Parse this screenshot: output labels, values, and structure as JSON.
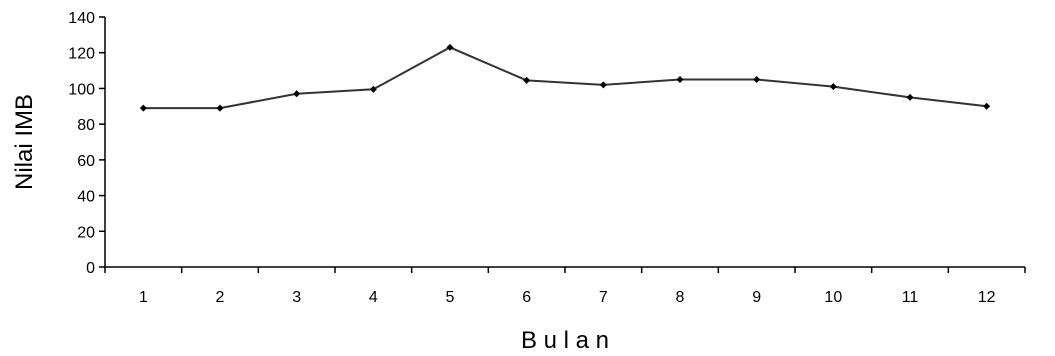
{
  "chart_data": {
    "type": "line",
    "categories": [
      "1",
      "2",
      "3",
      "4",
      "5",
      "6",
      "7",
      "8",
      "9",
      "10",
      "11",
      "12"
    ],
    "series": [
      {
        "values": [
          89,
          89,
          97,
          99.5,
          123,
          104.5,
          102,
          105,
          105,
          101,
          95,
          90
        ],
        "color": "#333333"
      }
    ],
    "title": "",
    "xlabel": "B u l a n",
    "ylabel": "Nilai IMB",
    "ylim": [
      0,
      140
    ],
    "yticks": [
      "0",
      "20",
      "40",
      "60",
      "80",
      "100",
      "120",
      "140"
    ],
    "grid": false,
    "legend": "none"
  }
}
